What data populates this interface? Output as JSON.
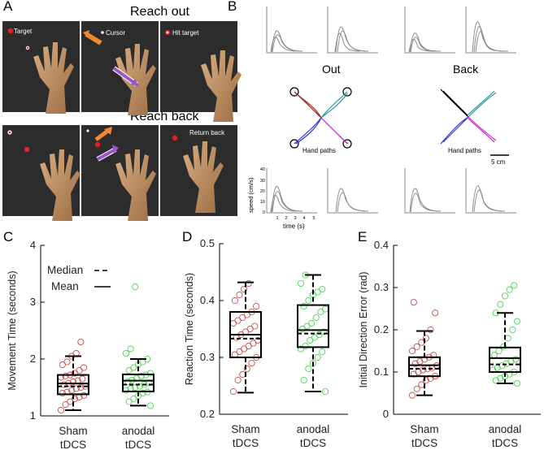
{
  "figure_label_a": "A",
  "figure_label_b": "B",
  "figure_label_c": "C",
  "figure_label_d": "D",
  "figure_label_e": "E",
  "panel_a": {
    "reach_out_title": "Reach out",
    "reach_back_title": "Reach back",
    "target_label": "Target",
    "cursor_label": "Cursor",
    "hit_target_label": "Hit target",
    "return_back_label": "Return back"
  },
  "panel_b": {
    "out_label": "Out",
    "back_label": "Back",
    "hand_paths_label": "Hand paths",
    "scale_label": "5 cm",
    "speed_axis_label": "speed (cm/s)",
    "time_axis_label": "time (s)",
    "speed_ticks": [
      "40",
      "30",
      "20",
      "10",
      "0"
    ],
    "time_ticks": [
      "1",
      "2",
      "3",
      "4",
      "5"
    ]
  },
  "legend": {
    "median": "Median",
    "mean": "Mean"
  },
  "group_labels": [
    {
      "line1": "Sham",
      "line2": "tDCS"
    },
    {
      "line1": "anodal",
      "line2": "tDCS"
    }
  ],
  "colors": {
    "sham": "#c0504d",
    "anodal": "#4cd44c"
  },
  "chart_data": [
    {
      "type": "box",
      "panel": "C",
      "ylabel": "Movement Time (seconds)",
      "ylim": [
        1,
        4
      ],
      "yticks": [
        "1",
        "2",
        "3",
        "4"
      ],
      "yticks_values": [
        1,
        2,
        3,
        4
      ],
      "groups": [
        {
          "name": "Sham tDCS",
          "whisker_low": 1.1,
          "q1": 1.38,
          "median": 1.52,
          "mean": 1.57,
          "q3": 1.72,
          "whisker_high": 2.05,
          "points": [
            1.1,
            1.2,
            1.25,
            1.3,
            1.33,
            1.36,
            1.4,
            1.42,
            1.45,
            1.48,
            1.5,
            1.52,
            1.55,
            1.57,
            1.6,
            1.62,
            1.65,
            1.68,
            1.7,
            1.72,
            1.75,
            1.8,
            1.85,
            1.9,
            1.95,
            2.05,
            2.1,
            2.3
          ]
        },
        {
          "name": "anodal tDCS",
          "whisker_low": 1.18,
          "q1": 1.43,
          "median": 1.55,
          "mean": 1.62,
          "q3": 1.73,
          "whisker_high": 2.0,
          "points": [
            1.18,
            1.25,
            1.3,
            1.35,
            1.4,
            1.42,
            1.45,
            1.48,
            1.5,
            1.52,
            1.55,
            1.58,
            1.6,
            1.63,
            1.66,
            1.7,
            1.72,
            1.75,
            1.8,
            1.85,
            1.9,
            1.95,
            2.0,
            2.1,
            2.18,
            3.27
          ]
        }
      ]
    },
    {
      "type": "box",
      "panel": "D",
      "ylabel": "Reaction Time (seconds)",
      "ylim": [
        0.2,
        0.5
      ],
      "yticks": [
        "0.2",
        "0.3",
        "0.4",
        "0.5"
      ],
      "yticks_values": [
        0.2,
        0.3,
        0.4,
        0.5
      ],
      "groups": [
        {
          "name": "Sham tDCS",
          "whisker_low": 0.238,
          "q1": 0.3,
          "median": 0.333,
          "mean": 0.34,
          "q3": 0.38,
          "whisker_high": 0.432,
          "points": [
            0.24,
            0.26,
            0.27,
            0.28,
            0.29,
            0.3,
            0.305,
            0.31,
            0.315,
            0.32,
            0.325,
            0.33,
            0.335,
            0.34,
            0.345,
            0.35,
            0.355,
            0.36,
            0.365,
            0.37,
            0.375,
            0.38,
            0.39,
            0.4,
            0.41,
            0.42,
            0.43
          ]
        },
        {
          "name": "anodal tDCS",
          "whisker_low": 0.24,
          "q1": 0.318,
          "median": 0.342,
          "mean": 0.348,
          "q3": 0.392,
          "whisker_high": 0.445,
          "points": [
            0.24,
            0.26,
            0.28,
            0.29,
            0.3,
            0.31,
            0.315,
            0.32,
            0.33,
            0.335,
            0.34,
            0.345,
            0.35,
            0.355,
            0.36,
            0.37,
            0.38,
            0.385,
            0.39,
            0.4,
            0.41,
            0.415,
            0.42,
            0.43,
            0.445
          ]
        }
      ]
    },
    {
      "type": "box",
      "panel": "E",
      "ylabel": "Initial Direction Error (rad)",
      "ylim": [
        0,
        0.4
      ],
      "yticks": [
        "0",
        "0.1",
        "0.2",
        "0.3",
        "0.4"
      ],
      "yticks_values": [
        0,
        0.1,
        0.2,
        0.3,
        0.4
      ],
      "groups": [
        {
          "name": "Sham tDCS",
          "whisker_low": 0.045,
          "q1": 0.09,
          "median": 0.108,
          "mean": 0.116,
          "q3": 0.135,
          "whisker_high": 0.197,
          "points": [
            0.045,
            0.06,
            0.07,
            0.08,
            0.085,
            0.09,
            0.095,
            0.1,
            0.105,
            0.108,
            0.11,
            0.115,
            0.12,
            0.125,
            0.13,
            0.135,
            0.14,
            0.15,
            0.16,
            0.17,
            0.18,
            0.2,
            0.24,
            0.265
          ]
        },
        {
          "name": "anodal tDCS",
          "whisker_low": 0.073,
          "q1": 0.1,
          "median": 0.118,
          "mean": 0.133,
          "q3": 0.158,
          "whisker_high": 0.24,
          "points": [
            0.073,
            0.08,
            0.085,
            0.09,
            0.095,
            0.1,
            0.105,
            0.11,
            0.115,
            0.12,
            0.125,
            0.13,
            0.14,
            0.15,
            0.16,
            0.18,
            0.2,
            0.22,
            0.24,
            0.26,
            0.28,
            0.295,
            0.305
          ]
        }
      ]
    }
  ]
}
